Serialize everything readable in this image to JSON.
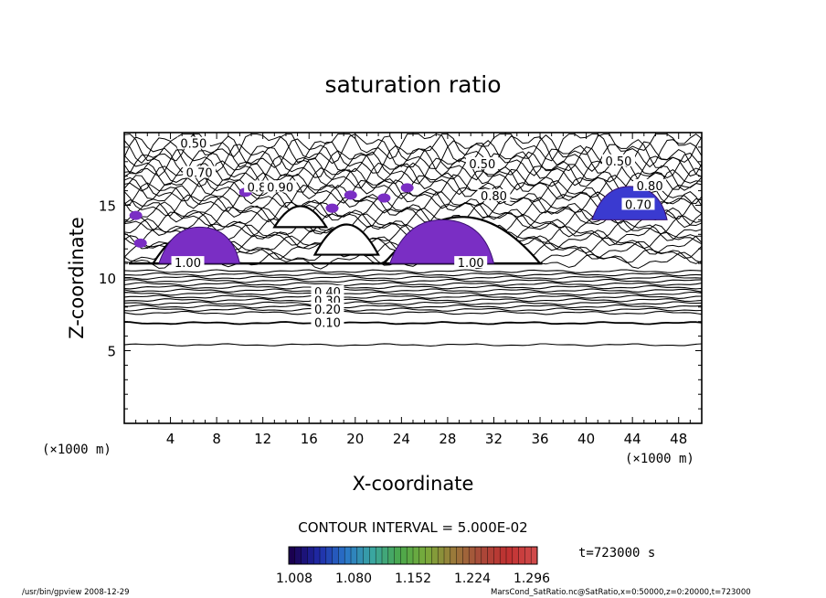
{
  "chart_data": {
    "type": "contour",
    "title": "saturation ratio",
    "xlabel": "X-coordinate",
    "ylabel": "Z-coordinate",
    "x_unit": "(×1000 m)",
    "y_unit": "(×1000 m)",
    "xlim": [
      0,
      50
    ],
    "ylim": [
      0,
      20
    ],
    "x_ticks": [
      4,
      8,
      12,
      16,
      20,
      24,
      28,
      32,
      36,
      40,
      44,
      48
    ],
    "y_ticks": [
      5,
      10,
      15
    ],
    "contour_interval_text": "CONTOUR INTERVAL = 5.000E-02",
    "time_text": "t=723000 s",
    "contour_labels": [
      {
        "text": "0.50",
        "x": 6.0,
        "z": 19.2
      },
      {
        "text": "0.70",
        "x": 6.5,
        "z": 17.2
      },
      {
        "text": "0.80",
        "x": 11.8,
        "z": 16.2
      },
      {
        "text": "0.90",
        "x": 13.5,
        "z": 16.2
      },
      {
        "text": "0.50",
        "x": 31.0,
        "z": 17.8
      },
      {
        "text": "0.80",
        "x": 32.0,
        "z": 15.6
      },
      {
        "text": "0.50",
        "x": 42.8,
        "z": 18.0
      },
      {
        "text": "0.80",
        "x": 45.5,
        "z": 16.3
      },
      {
        "text": "0.70",
        "x": 44.5,
        "z": 15.0
      },
      {
        "text": "1.00",
        "x": 5.5,
        "z": 11.0
      },
      {
        "text": "1.00",
        "x": 30.0,
        "z": 11.0
      },
      {
        "text": "0.40",
        "x": 17.6,
        "z": 9.0
      },
      {
        "text": "0.30",
        "x": 17.6,
        "z": 8.4
      },
      {
        "text": "0.20",
        "x": 17.6,
        "z": 7.8
      },
      {
        "text": "0.10",
        "x": 17.6,
        "z": 6.9
      }
    ],
    "colorbar": {
      "labels": [
        "1.008",
        "1.080",
        "1.152",
        "1.224",
        "1.296"
      ],
      "range": [
        1.008,
        1.296
      ],
      "colors": [
        "#1a0050",
        "#1f2aa8",
        "#2a76c8",
        "#3aa6a0",
        "#4aa84c",
        "#7aaa3a",
        "#9a7a3a",
        "#a84a3a",
        "#c03030",
        "#d04a4a"
      ]
    },
    "shaded_regions": [
      {
        "name": "left-cloud",
        "color": "#7a2ec4",
        "x": [
          3,
          10
        ],
        "z": [
          11,
          13.5
        ]
      },
      {
        "name": "center-cloud",
        "color": "#7a2ec4",
        "x": [
          23,
          32
        ],
        "z": [
          11,
          14
        ]
      },
      {
        "name": "right-cloud",
        "color": "#3a3ad0",
        "x": [
          40.5,
          47
        ],
        "z": [
          14,
          16.3
        ]
      }
    ]
  },
  "footer": {
    "left": "/usr/bin/gpview   2008-12-29",
    "right": "MarsCond_SatRatio.nc@SatRatio,x=0:50000,z=0:20000,t=723000"
  }
}
